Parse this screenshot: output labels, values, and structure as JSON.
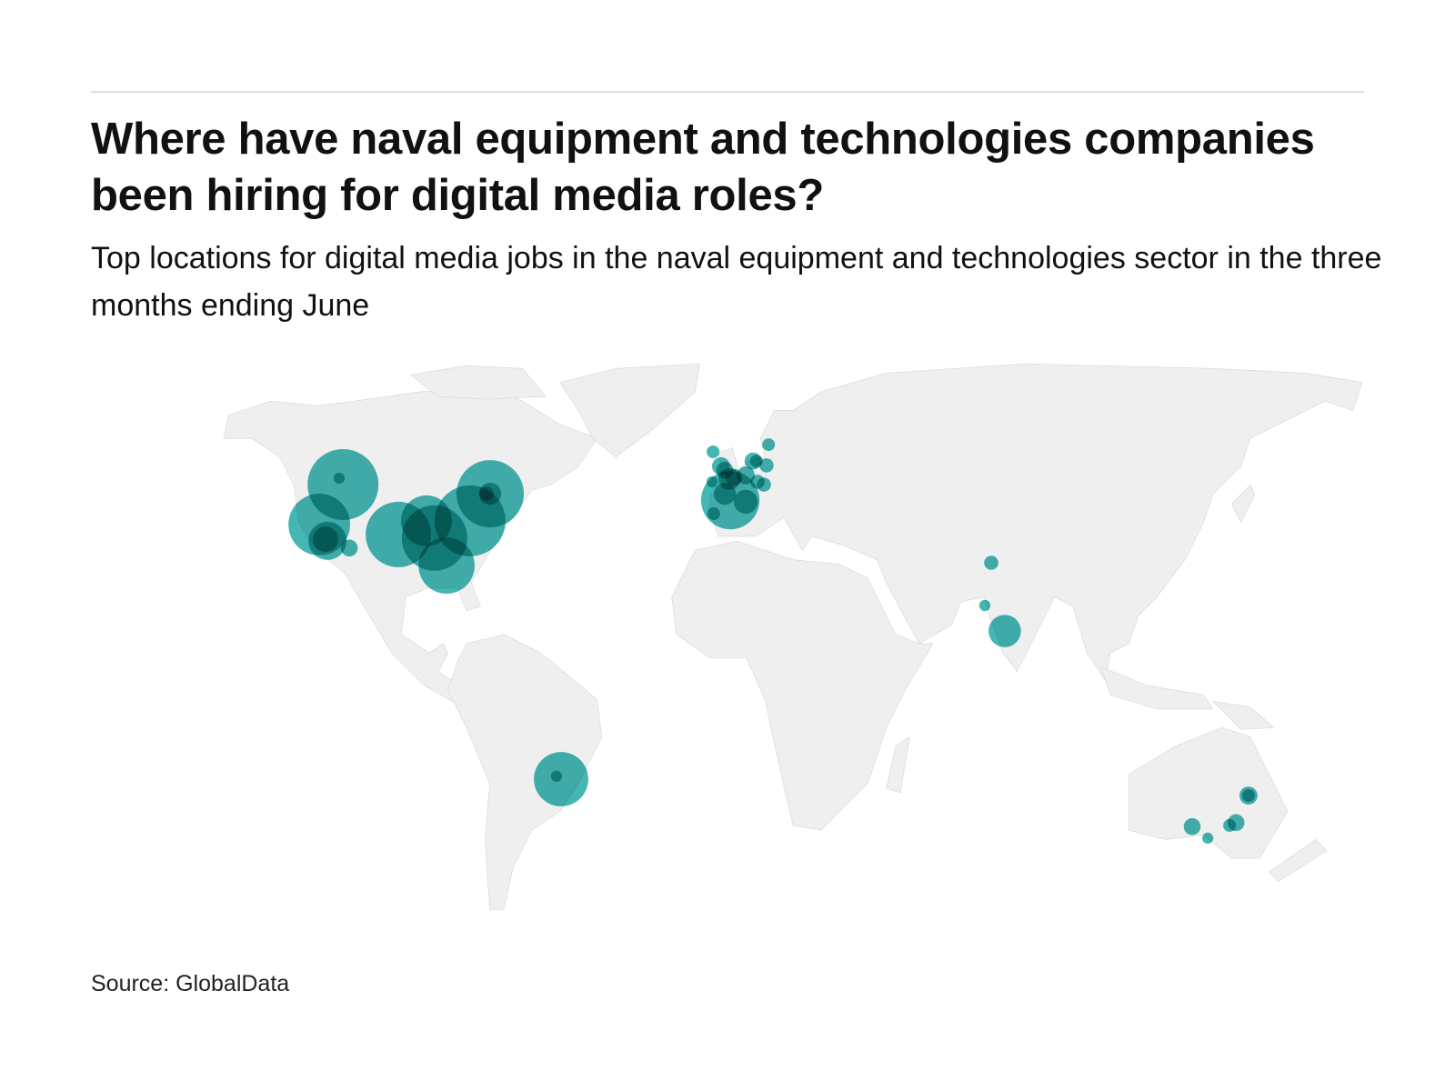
{
  "header": {
    "title": "Where have naval equipment and technologies companies been hiring for digital media roles?",
    "subtitle": "Top locations for digital media jobs in the naval equipment and technologies sector in the three months ending June"
  },
  "footer": {
    "source": "Source: GlobalData"
  },
  "colors": {
    "bubble": "#23a9a6",
    "land": "#efefef",
    "rule": "#dedede"
  },
  "chart_data": {
    "type": "bubble-map",
    "projection": "Robinson-like world map",
    "size_encoding": "bubble area proportional to relative number of job postings",
    "bubbles": [
      {
        "region": "North America",
        "lat": 50.8,
        "lon": -123.8,
        "value": 124
      },
      {
        "region": "North America",
        "lat": 52.4,
        "lon": -125.7,
        "value": 3
      },
      {
        "region": "North America",
        "lat": 40.8,
        "lon": -127.3,
        "value": 94
      },
      {
        "region": "North America",
        "lat": 36.7,
        "lon": -123.5,
        "value": 36
      },
      {
        "region": "North America",
        "lat": 37.1,
        "lon": -124.2,
        "value": 16
      },
      {
        "region": "North America",
        "lat": 34.9,
        "lon": -116.4,
        "value": 7
      },
      {
        "region": "North America",
        "lat": 38.3,
        "lon": -102.4,
        "value": 106
      },
      {
        "region": "North America",
        "lat": 41.7,
        "lon": -94.7,
        "value": 64
      },
      {
        "region": "North America",
        "lat": 37.4,
        "lon": -91.2,
        "value": 106
      },
      {
        "region": "North America",
        "lat": 41.7,
        "lon": -81.3,
        "value": 124
      },
      {
        "region": "North America",
        "lat": 30.5,
        "lon": -86.2,
        "value": 78
      },
      {
        "region": "North America",
        "lat": 48.5,
        "lon": -76.7,
        "value": 112
      },
      {
        "region": "North America",
        "lat": 48.5,
        "lon": -76.7,
        "value": 12
      },
      {
        "region": "North America",
        "lat": 48.5,
        "lon": -77.8,
        "value": 5
      },
      {
        "region": "South America",
        "lat": -23.0,
        "lon": -51.3,
        "value": 73
      },
      {
        "region": "South America",
        "lat": -22.3,
        "lon": -52.6,
        "value": 3
      },
      {
        "region": "Europe",
        "lat": 46.9,
        "lon": -1.4,
        "value": 84
      },
      {
        "region": "Europe",
        "lat": 59.0,
        "lon": -7.1,
        "value": 4
      },
      {
        "region": "Europe",
        "lat": 60.8,
        "lon": 11.1,
        "value": 4
      },
      {
        "region": "Europe",
        "lat": 55.4,
        "lon": -4.4,
        "value": 8
      },
      {
        "region": "Europe",
        "lat": 54.4,
        "lon": -3.2,
        "value": 7
      },
      {
        "region": "Europe",
        "lat": 52.2,
        "lon": -1.7,
        "value": 12
      },
      {
        "region": "Europe",
        "lat": 52.6,
        "lon": -0.3,
        "value": 7
      },
      {
        "region": "Europe",
        "lat": 51.5,
        "lon": -7.2,
        "value": 3
      },
      {
        "region": "Europe",
        "lat": 46.5,
        "lon": 3.4,
        "value": 14
      },
      {
        "region": "Europe",
        "lat": 48.5,
        "lon": -3.1,
        "value": 12
      },
      {
        "region": "Europe",
        "lat": 43.5,
        "lon": -6.5,
        "value": 4
      },
      {
        "region": "Europe",
        "lat": 56.7,
        "lon": 5.9,
        "value": 7
      },
      {
        "region": "Europe",
        "lat": 55.6,
        "lon": 10.2,
        "value": 5
      },
      {
        "region": "Europe",
        "lat": 51.5,
        "lon": 7.2,
        "value": 5
      },
      {
        "region": "Europe",
        "lat": 50.8,
        "lon": 9.2,
        "value": 5
      },
      {
        "region": "Europe",
        "lat": 53.1,
        "lon": 3.5,
        "value": 8
      },
      {
        "region": "Europe",
        "lat": 56.7,
        "lon": 7.0,
        "value": 4
      },
      {
        "region": "Asia",
        "lat": 31.2,
        "lon": 76.8,
        "value": 5
      },
      {
        "region": "Asia",
        "lat": 20.5,
        "lon": 73.6,
        "value": 3
      },
      {
        "region": "Asia",
        "lat": 14.1,
        "lon": 78.9,
        "value": 26
      },
      {
        "region": "Oceania",
        "lat": -27.1,
        "lon": 152.7,
        "value": 8
      },
      {
        "region": "Oceania",
        "lat": -27.1,
        "lon": 152.7,
        "value": 4
      },
      {
        "region": "Oceania",
        "lat": -33.9,
        "lon": 151.0,
        "value": 7
      },
      {
        "region": "Oceania",
        "lat": -34.6,
        "lon": 149.3,
        "value": 4
      },
      {
        "region": "Oceania",
        "lat": -34.9,
        "lon": 138.1,
        "value": 7
      },
      {
        "region": "Oceania",
        "lat": -37.8,
        "lon": 143.8,
        "value": 3
      }
    ]
  }
}
